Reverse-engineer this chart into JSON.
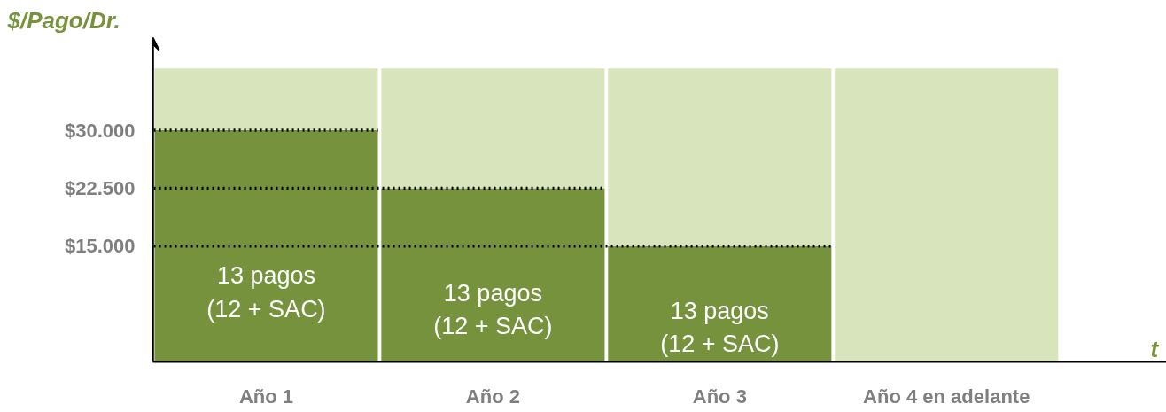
{
  "chart_data": {
    "type": "bar",
    "stacked": true,
    "ylabel": "$/Pago/Dr.",
    "xlabel": "t",
    "categories": [
      "Año 1",
      "Año 2",
      "Año 3",
      "Año 4 en adelante"
    ],
    "annotations": [
      "13 pagos\n(12 + SAC)",
      "13 pagos\n(12 + SAC)",
      "13 pagos\n(12 + SAC)"
    ],
    "series": [
      {
        "color": "#76923c",
        "values": [
          30000,
          22500,
          15000,
          0
        ]
      },
      {
        "color": "#d7e4bc",
        "values": [
          8000,
          15500,
          23000,
          38000
        ]
      }
    ],
    "ylim": [
      0,
      42000
    ],
    "yticks": [
      {
        "value": 15000,
        "label": "$15.000"
      },
      {
        "value": 22500,
        "label": "$22.500"
      },
      {
        "value": 30000,
        "label": "$30.000"
      }
    ],
    "ref_lines": [
      {
        "axis": "y",
        "value": 30000,
        "label": null,
        "line_style": "dotted",
        "color": "#000000"
      },
      {
        "axis": "y",
        "value": 22500,
        "label": null,
        "line_style": "dotted",
        "color": "#000000"
      },
      {
        "axis": "y",
        "value": 15000,
        "label": null,
        "line_style": "dotted",
        "color": "#000000"
      }
    ],
    "grid": false
  }
}
